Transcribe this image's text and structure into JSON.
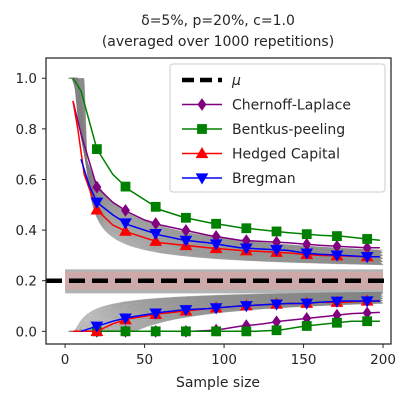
{
  "chart_data": {
    "type": "line",
    "title_line1": "δ=5%, p=20%, c=1.0",
    "title_line2": "(averaged over 1000 repetitions)",
    "xlabel": "Sample size",
    "ylabel": "",
    "xlim": [
      -12,
      205
    ],
    "ylim": [
      -0.05,
      1.08
    ],
    "xticks": [
      0,
      50,
      100,
      150,
      200
    ],
    "xtick_labels": [
      "0",
      "50",
      "100",
      "150",
      "200"
    ],
    "yticks": [
      0.0,
      0.2,
      0.4,
      0.6,
      0.8,
      1.0
    ],
    "ytick_labels": [
      "0.0",
      "0.2",
      "0.4",
      "0.6",
      "0.8",
      "1.0"
    ],
    "grid": false,
    "legend_placement": "top-right",
    "mu": 0.2,
    "mu_label": "μ",
    "background_band": {
      "color": "#808080",
      "description_count": 300
    },
    "series": [
      {
        "name": "Chernoff-Laplace",
        "color": "#800080",
        "marker": "diamond",
        "upper": {
          "x": [
            5,
            10,
            20,
            30,
            40,
            50,
            60,
            75,
            90,
            100,
            110,
            125,
            140,
            150,
            160,
            175,
            190,
            198
          ],
          "y": [
            0.91,
            0.78,
            0.57,
            0.51,
            0.47,
            0.44,
            0.42,
            0.4,
            0.38,
            0.37,
            0.36,
            0.355,
            0.35,
            0.345,
            0.34,
            0.335,
            0.33,
            0.33
          ]
        },
        "lower": {
          "x": [
            5,
            20,
            40,
            57,
            80,
            95,
            110,
            125,
            135,
            150,
            165,
            180,
            198
          ],
          "y": [
            0.0,
            0.0,
            0.0,
            0.0,
            0.0,
            0.005,
            0.02,
            0.03,
            0.04,
            0.05,
            0.06,
            0.07,
            0.075
          ]
        },
        "marker_x": [
          20,
          38,
          57,
          76,
          95,
          114,
          133,
          152,
          171,
          190
        ]
      },
      {
        "name": "Bentkus-peeling",
        "color": "#008000",
        "marker": "square",
        "upper": {
          "x": [
            5,
            10,
            20,
            30,
            40,
            50,
            60,
            75,
            90,
            100,
            110,
            125,
            140,
            150,
            160,
            175,
            190,
            198
          ],
          "y": [
            1.0,
            0.95,
            0.72,
            0.62,
            0.56,
            0.52,
            0.48,
            0.45,
            0.43,
            0.42,
            0.41,
            0.4,
            0.39,
            0.385,
            0.38,
            0.375,
            0.365,
            0.36
          ]
        },
        "lower": {
          "x": [
            5,
            20,
            40,
            57,
            80,
            100,
            120,
            135,
            150,
            165,
            180,
            198
          ],
          "y": [
            0.0,
            0.0,
            0.0,
            0.0,
            0.0,
            0.0,
            0.0,
            0.005,
            0.02,
            0.03,
            0.04,
            0.04
          ]
        },
        "marker_x": [
          20,
          38,
          57,
          76,
          95,
          114,
          133,
          152,
          171,
          190
        ]
      },
      {
        "name": "Hedged Capital",
        "color": "#ff0000",
        "marker": "triangle-up",
        "upper": {
          "x": [
            5,
            8,
            12,
            20,
            30,
            40,
            50,
            60,
            75,
            90,
            100,
            110,
            125,
            140,
            150,
            160,
            175,
            190,
            198
          ],
          "y": [
            0.91,
            0.8,
            0.62,
            0.48,
            0.42,
            0.39,
            0.37,
            0.35,
            0.34,
            0.33,
            0.325,
            0.32,
            0.315,
            0.31,
            0.305,
            0.3,
            0.298,
            0.295,
            0.295
          ]
        },
        "lower": {
          "x": [
            5,
            10,
            20,
            30,
            40,
            50,
            60,
            75,
            90,
            100,
            110,
            125,
            140,
            150,
            160,
            175,
            190,
            198
          ],
          "y": [
            0.0,
            0.0,
            0.0,
            0.03,
            0.05,
            0.06,
            0.07,
            0.08,
            0.09,
            0.095,
            0.1,
            0.105,
            0.11,
            0.11,
            0.115,
            0.115,
            0.12,
            0.12
          ]
        },
        "marker_x": [
          20,
          38,
          57,
          76,
          95,
          114,
          133,
          152,
          171,
          190
        ]
      },
      {
        "name": "Bregman",
        "color": "#0000ff",
        "marker": "triangle-down",
        "upper": {
          "x": [
            10,
            15,
            20,
            30,
            40,
            50,
            60,
            75,
            90,
            100,
            110,
            125,
            140,
            150,
            160,
            175,
            190,
            198
          ],
          "y": [
            0.68,
            0.58,
            0.51,
            0.46,
            0.42,
            0.4,
            0.38,
            0.36,
            0.35,
            0.34,
            0.33,
            0.325,
            0.32,
            0.31,
            0.305,
            0.3,
            0.295,
            0.295
          ]
        },
        "lower": {
          "x": [
            10,
            15,
            20,
            30,
            40,
            50,
            60,
            75,
            90,
            100,
            110,
            125,
            140,
            150,
            160,
            175,
            190,
            198
          ],
          "y": [
            0.0,
            0.01,
            0.02,
            0.04,
            0.055,
            0.065,
            0.075,
            0.085,
            0.09,
            0.095,
            0.1,
            0.105,
            0.11,
            0.11,
            0.115,
            0.12,
            0.12,
            0.12
          ]
        },
        "marker_x": [
          20,
          38,
          57,
          76,
          95,
          114,
          133,
          152,
          171,
          190
        ]
      }
    ]
  }
}
